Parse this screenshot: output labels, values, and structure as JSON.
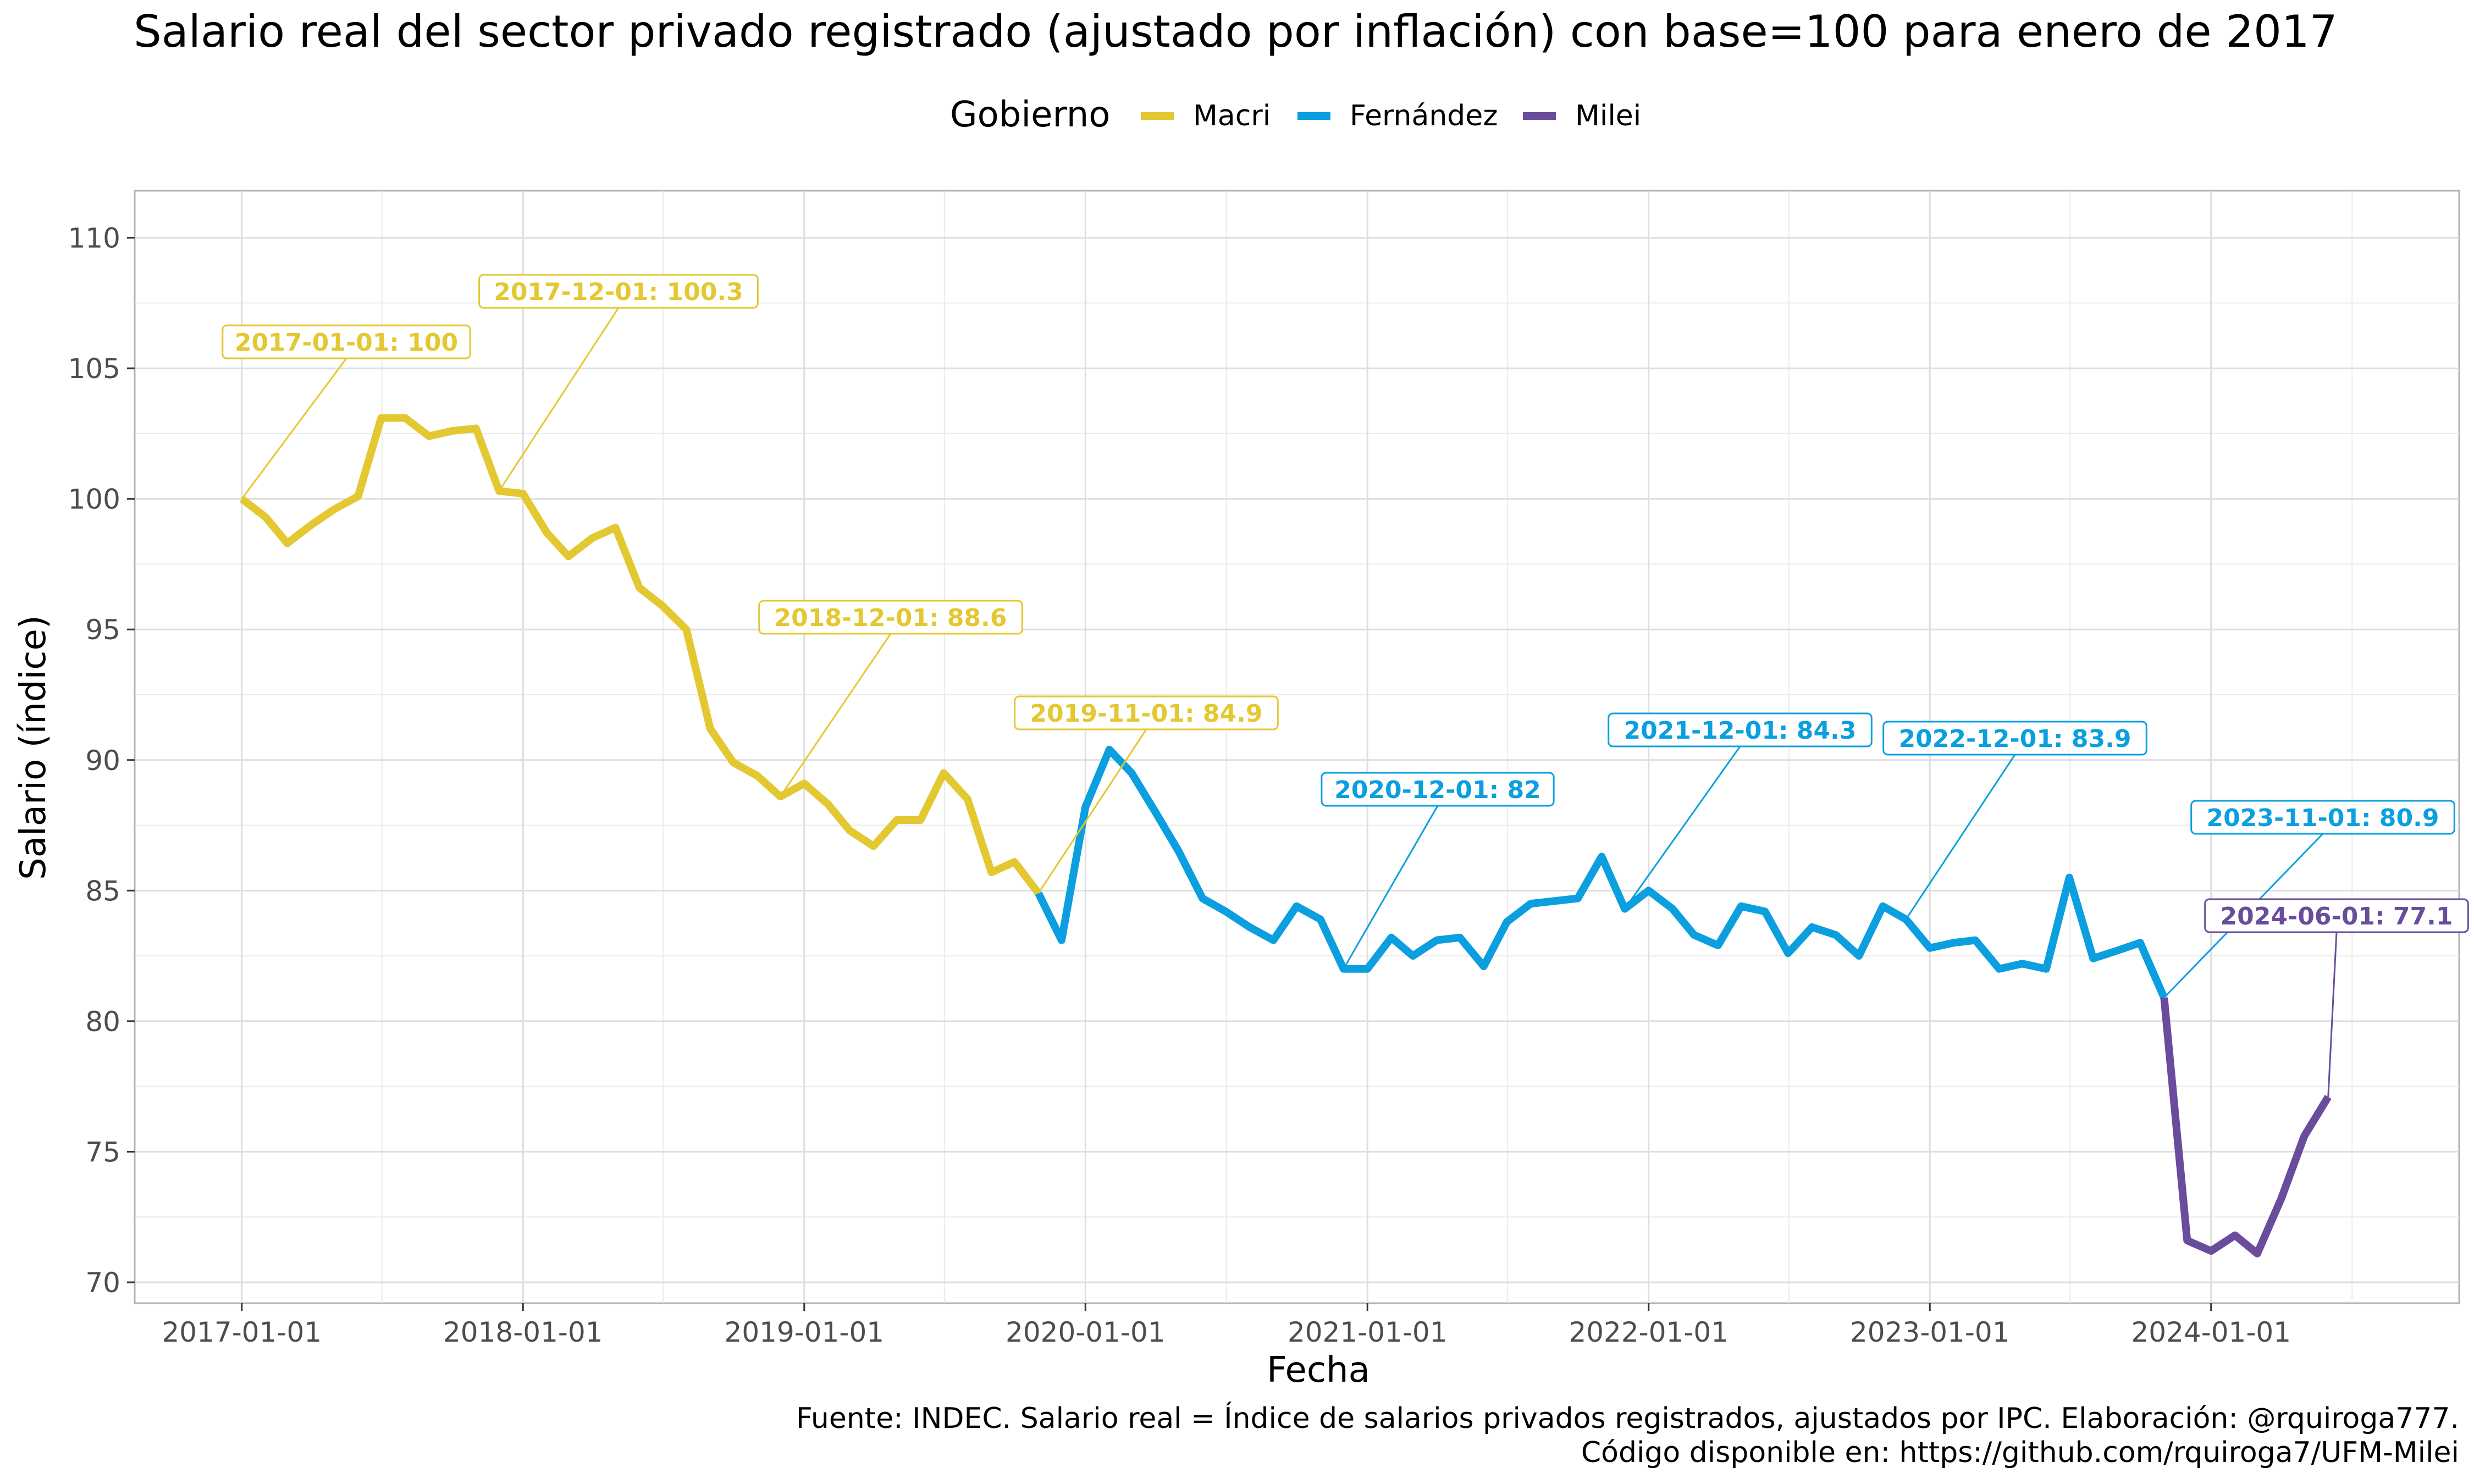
{
  "chart_data": {
    "type": "line",
    "title": "Salario real del sector privado registrado (ajustado por inflación) con base=100 para enero de 2017",
    "xlabel": "Fecha",
    "ylabel": "Salario (índice)",
    "ylim": [
      69.2,
      111.8
    ],
    "xlim": [
      "2016-08-15",
      "2024-11-18"
    ],
    "y_ticks": [
      70,
      75,
      80,
      85,
      90,
      95,
      100,
      105,
      110
    ],
    "x_ticks": [
      "2017-01-01",
      "2018-01-01",
      "2019-01-01",
      "2020-01-01",
      "2021-01-01",
      "2022-01-01",
      "2023-01-01",
      "2024-01-01"
    ],
    "grid": true,
    "legend": {
      "title": "Gobierno",
      "placement": "top",
      "items": [
        {
          "name": "Macri",
          "color": "#E3C832"
        },
        {
          "name": "Fernández",
          "color": "#0B9FDF"
        },
        {
          "name": "Milei",
          "color": "#6A4C9C"
        }
      ]
    },
    "series": [
      {
        "name": "Macri",
        "color": "#E3C832",
        "x": [
          "2017-01-01",
          "2017-02-01",
          "2017-03-01",
          "2017-04-01",
          "2017-05-01",
          "2017-06-01",
          "2017-07-01",
          "2017-08-01",
          "2017-09-01",
          "2017-10-01",
          "2017-11-01",
          "2017-12-01",
          "2018-01-01",
          "2018-02-01",
          "2018-03-01",
          "2018-04-01",
          "2018-05-01",
          "2018-06-01",
          "2018-07-01",
          "2018-08-01",
          "2018-09-01",
          "2018-10-01",
          "2018-11-01",
          "2018-12-01",
          "2019-01-01",
          "2019-02-01",
          "2019-03-01",
          "2019-04-01",
          "2019-05-01",
          "2019-06-01",
          "2019-07-01",
          "2019-08-01",
          "2019-09-01",
          "2019-10-01",
          "2019-11-01"
        ],
        "y": [
          100,
          99.3,
          98.3,
          99.0,
          99.6,
          100.1,
          103.1,
          103.1,
          102.4,
          102.6,
          102.7,
          100.3,
          100.2,
          98.7,
          97.8,
          98.5,
          98.9,
          96.6,
          95.9,
          95.0,
          91.2,
          89.9,
          89.4,
          88.6,
          89.1,
          88.3,
          87.3,
          86.7,
          87.7,
          87.7,
          89.5,
          88.5,
          85.7,
          86.1,
          84.9
        ]
      },
      {
        "name": "Fernández",
        "color": "#0B9FDF",
        "x": [
          "2019-11-01",
          "2019-12-01",
          "2020-01-01",
          "2020-02-01",
          "2020-03-01",
          "2020-04-01",
          "2020-05-01",
          "2020-06-01",
          "2020-07-01",
          "2020-08-01",
          "2020-09-01",
          "2020-10-01",
          "2020-11-01",
          "2020-12-01",
          "2021-01-01",
          "2021-02-01",
          "2021-03-01",
          "2021-04-01",
          "2021-05-01",
          "2021-06-01",
          "2021-07-01",
          "2021-08-01",
          "2021-09-01",
          "2021-10-01",
          "2021-11-01",
          "2021-12-01",
          "2022-01-01",
          "2022-02-01",
          "2022-03-01",
          "2022-04-01",
          "2022-05-01",
          "2022-06-01",
          "2022-07-01",
          "2022-08-01",
          "2022-09-01",
          "2022-10-01",
          "2022-11-01",
          "2022-12-01",
          "2023-01-01",
          "2023-02-01",
          "2023-03-01",
          "2023-04-01",
          "2023-05-01",
          "2023-06-01",
          "2023-07-01",
          "2023-08-01",
          "2023-09-01",
          "2023-10-01",
          "2023-11-01"
        ],
        "y": [
          84.9,
          83.1,
          88.2,
          90.4,
          89.5,
          88.0,
          86.5,
          84.7,
          84.2,
          83.6,
          83.1,
          84.4,
          83.9,
          82.0,
          82.0,
          83.2,
          82.5,
          83.1,
          83.2,
          82.1,
          83.8,
          84.5,
          84.6,
          84.7,
          86.3,
          84.3,
          85.0,
          84.3,
          83.3,
          82.9,
          84.4,
          84.2,
          82.6,
          83.6,
          83.3,
          82.5,
          84.4,
          83.9,
          82.8,
          83.0,
          83.1,
          82.0,
          82.2,
          82.0,
          85.5,
          82.4,
          82.7,
          83.0,
          80.9
        ]
      },
      {
        "name": "Milei",
        "color": "#6A4C9C",
        "x": [
          "2023-11-01",
          "2023-12-01",
          "2024-01-01",
          "2024-02-01",
          "2024-03-01",
          "2024-04-01",
          "2024-05-01",
          "2024-06-01"
        ],
        "y": [
          80.9,
          71.6,
          71.2,
          71.8,
          71.1,
          73.2,
          75.6,
          77.1
        ]
      }
    ],
    "annotations": [
      {
        "text": "2017-01-01: 100",
        "x": "2017-01-01",
        "y": 100,
        "series": "Macri",
        "color": "#E3C832"
      },
      {
        "text": "2017-12-01: 100.3",
        "x": "2017-12-01",
        "y": 100.3,
        "series": "Macri",
        "color": "#E3C832"
      },
      {
        "text": "2018-12-01: 88.6",
        "x": "2018-12-01",
        "y": 88.6,
        "series": "Macri",
        "color": "#E3C832"
      },
      {
        "text": "2019-11-01: 84.9",
        "x": "2019-11-01",
        "y": 84.9,
        "series": "Macri",
        "color": "#E3C832"
      },
      {
        "text": "2020-12-01: 82",
        "x": "2020-12-01",
        "y": 82,
        "series": "Fernández",
        "color": "#0B9FDF"
      },
      {
        "text": "2021-12-01: 84.3",
        "x": "2021-12-01",
        "y": 84.3,
        "series": "Fernández",
        "color": "#0B9FDF"
      },
      {
        "text": "2022-12-01: 83.9",
        "x": "2022-12-01",
        "y": 83.9,
        "series": "Fernández",
        "color": "#0B9FDF"
      },
      {
        "text": "2023-11-01: 80.9",
        "x": "2023-11-01",
        "y": 80.9,
        "series": "Fernández",
        "color": "#0B9FDF"
      },
      {
        "text": "2024-06-01: 77.1",
        "x": "2024-06-01",
        "y": 77.1,
        "series": "Milei",
        "color": "#6A4C9C"
      }
    ],
    "caption": [
      "Fuente: INDEC. Salario real = Índice de salarios privados registrados, ajustados por IPC. Elaboración: @rquiroga777.",
      "Código disponible en: https://github.com/rquiroga7/UFM-Milei"
    ]
  }
}
